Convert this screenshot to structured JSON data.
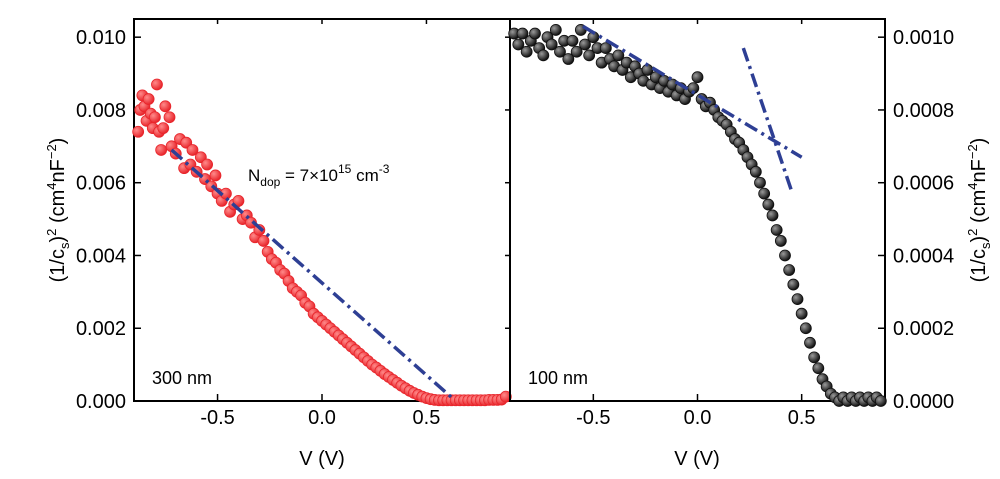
{
  "chart_data": [
    {
      "type": "scatter",
      "panel_label": "300 nm",
      "xlabel": "V (V)",
      "ylabel": "(1/c_s)^2 (cm^4 nF^-2)",
      "ylabel_parts": {
        "open": "(1/c",
        "sub": "s",
        "close": ")",
        "sup2": "2",
        "unit_open": " (cm",
        "unit_sup": "4",
        "unit_mid": "nF",
        "unit_sup2": "−2",
        "unit_close": ")"
      },
      "xlim": [
        -0.9,
        0.9
      ],
      "ylim": [
        0.0,
        0.0105
      ],
      "xticks": [
        -0.5,
        0.0,
        0.5
      ],
      "xtick_labels": [
        "-0.5",
        "0.0",
        "0.5"
      ],
      "yticks": [
        0.0,
        0.002,
        0.004,
        0.006,
        0.008,
        0.01
      ],
      "ytick_labels": [
        "0.000",
        "0.002",
        "0.004",
        "0.006",
        "0.008",
        "0.010"
      ],
      "annotation": {
        "base": "N",
        "sub": "dop",
        "eq": " = 7×10",
        "sup": "15",
        "unit": " cm",
        "unit_sup": "-3"
      },
      "marker_color": "#e8262c",
      "fit_color": "#2e3f94",
      "fit_lines": [
        {
          "x": [
            -0.72,
            0.62
          ],
          "y": [
            0.0069,
            0.0001
          ]
        }
      ],
      "series": [
        {
          "values": [
            [
              -0.88,
              0.0074
            ],
            [
              -0.87,
              0.008
            ],
            [
              -0.86,
              0.0084
            ],
            [
              -0.85,
              0.0081
            ],
            [
              -0.84,
              0.0077
            ],
            [
              -0.83,
              0.0083
            ],
            [
              -0.82,
              0.0079
            ],
            [
              -0.81,
              0.0075
            ],
            [
              -0.8,
              0.0078
            ],
            [
              -0.79,
              0.0087
            ],
            [
              -0.78,
              0.0074
            ],
            [
              -0.77,
              0.0069
            ],
            [
              -0.76,
              0.0075
            ],
            [
              -0.75,
              0.0081
            ],
            [
              -0.73,
              0.0078
            ],
            [
              -0.72,
              0.007
            ],
            [
              -0.7,
              0.0068
            ],
            [
              -0.68,
              0.0072
            ],
            [
              -0.66,
              0.0064
            ],
            [
              -0.65,
              0.0071
            ],
            [
              -0.63,
              0.0065
            ],
            [
              -0.62,
              0.0069
            ],
            [
              -0.6,
              0.0063
            ],
            [
              -0.58,
              0.0067
            ],
            [
              -0.56,
              0.0061
            ],
            [
              -0.55,
              0.0065
            ],
            [
              -0.53,
              0.0059
            ],
            [
              -0.51,
              0.0062
            ],
            [
              -0.5,
              0.0057
            ],
            [
              -0.48,
              0.0055
            ],
            [
              -0.46,
              0.0057
            ],
            [
              -0.44,
              0.0052
            ],
            [
              -0.42,
              0.0054
            ],
            [
              -0.4,
              0.0055
            ],
            [
              -0.38,
              0.005
            ],
            [
              -0.36,
              0.0051
            ],
            [
              -0.34,
              0.0049
            ],
            [
              -0.32,
              0.0045
            ],
            [
              -0.3,
              0.0047
            ],
            [
              -0.28,
              0.0044
            ],
            [
              -0.26,
              0.0041
            ],
            [
              -0.24,
              0.0039
            ],
            [
              -0.22,
              0.0038
            ],
            [
              -0.2,
              0.0036
            ],
            [
              -0.18,
              0.0035
            ],
            [
              -0.16,
              0.0033
            ],
            [
              -0.14,
              0.0031
            ],
            [
              -0.12,
              0.003
            ],
            [
              -0.1,
              0.0029
            ],
            [
              -0.08,
              0.0027
            ],
            [
              -0.06,
              0.0026
            ],
            [
              -0.04,
              0.0024
            ],
            [
              -0.02,
              0.0023
            ],
            [
              0.0,
              0.0022
            ],
            [
              0.02,
              0.0021
            ],
            [
              0.04,
              0.002
            ],
            [
              0.06,
              0.0019
            ],
            [
              0.08,
              0.0018
            ],
            [
              0.1,
              0.0017
            ],
            [
              0.12,
              0.0016
            ],
            [
              0.14,
              0.0015
            ],
            [
              0.16,
              0.0014
            ],
            [
              0.18,
              0.0013
            ],
            [
              0.2,
              0.0012
            ],
            [
              0.22,
              0.0011
            ],
            [
              0.24,
              0.001
            ],
            [
              0.26,
              0.00092
            ],
            [
              0.28,
              0.00083
            ],
            [
              0.3,
              0.00074
            ],
            [
              0.32,
              0.00066
            ],
            [
              0.34,
              0.00058
            ],
            [
              0.36,
              0.0005
            ],
            [
              0.38,
              0.00042
            ],
            [
              0.4,
              0.00035
            ],
            [
              0.42,
              0.00028
            ],
            [
              0.44,
              0.00022
            ],
            [
              0.46,
              0.00017
            ],
            [
              0.48,
              0.00012
            ],
            [
              0.5,
              8e-05
            ],
            [
              0.52,
              5e-05
            ],
            [
              0.54,
              3e-05
            ],
            [
              0.56,
              2e-05
            ],
            [
              0.58,
              2e-05
            ],
            [
              0.6,
              2e-05
            ],
            [
              0.62,
              2e-05
            ],
            [
              0.64,
              2e-05
            ],
            [
              0.66,
              2e-05
            ],
            [
              0.68,
              2e-05
            ],
            [
              0.7,
              2e-05
            ],
            [
              0.72,
              2e-05
            ],
            [
              0.74,
              2e-05
            ],
            [
              0.76,
              2e-05
            ],
            [
              0.78,
              2e-05
            ],
            [
              0.8,
              3e-05
            ],
            [
              0.82,
              3e-05
            ],
            [
              0.84,
              3e-05
            ],
            [
              0.86,
              4e-05
            ],
            [
              0.88,
              0.00012
            ]
          ]
        }
      ]
    },
    {
      "type": "scatter",
      "panel_label": "100 nm",
      "xlabel": "V (V)",
      "ylabel": "(1/c_s)^2 (cm^4 nF^-2)",
      "ylabel_parts": {
        "open": "(1/c",
        "sub": "s",
        "close": ")",
        "sup2": "2",
        "unit_open": " (cm",
        "unit_sup": "4",
        "unit_mid": "nF",
        "unit_sup2": "−2",
        "unit_close": ")"
      },
      "xlim": [
        -0.9,
        0.9
      ],
      "ylim": [
        0.0,
        0.00105
      ],
      "xticks": [
        -0.5,
        0.0,
        0.5
      ],
      "xtick_labels": [
        "-0.5",
        "0.0",
        "0.5"
      ],
      "yticks": [
        0.0,
        0.0002,
        0.0004,
        0.0006,
        0.0008,
        0.001
      ],
      "ytick_labels": [
        "0.0000",
        "0.0002",
        "0.0004",
        "0.0006",
        "0.0008",
        "0.0010"
      ],
      "marker_color": "#111111",
      "fit_color": "#2e3f94",
      "fit_lines": [
        {
          "x": [
            -0.55,
            0.5
          ],
          "y": [
            0.00103,
            0.00067
          ]
        },
        {
          "x": [
            0.22,
            0.45
          ],
          "y": [
            0.00097,
            0.00058
          ]
        }
      ],
      "series": [
        {
          "values": [
            [
              -0.88,
              0.00101
            ],
            [
              -0.86,
              0.00098
            ],
            [
              -0.84,
              0.00101
            ],
            [
              -0.82,
              0.00096
            ],
            [
              -0.8,
              0.00099
            ],
            [
              -0.78,
              0.00101
            ],
            [
              -0.76,
              0.00097
            ],
            [
              -0.74,
              0.00095
            ],
            [
              -0.72,
              0.001
            ],
            [
              -0.7,
              0.00098
            ],
            [
              -0.68,
              0.00102
            ],
            [
              -0.66,
              0.00096
            ],
            [
              -0.64,
              0.00099
            ],
            [
              -0.62,
              0.00094
            ],
            [
              -0.6,
              0.00099
            ],
            [
              -0.58,
              0.00096
            ],
            [
              -0.56,
              0.00102
            ],
            [
              -0.54,
              0.00098
            ],
            [
              -0.52,
              0.00095
            ],
            [
              -0.5,
              0.001
            ],
            [
              -0.48,
              0.00097
            ],
            [
              -0.46,
              0.00093
            ],
            [
              -0.44,
              0.00097
            ],
            [
              -0.42,
              0.00094
            ],
            [
              -0.4,
              0.00092
            ],
            [
              -0.38,
              0.00095
            ],
            [
              -0.36,
              0.00091
            ],
            [
              -0.34,
              0.00093
            ],
            [
              -0.32,
              0.00089
            ],
            [
              -0.3,
              0.00092
            ],
            [
              -0.28,
              0.0009
            ],
            [
              -0.26,
              0.00088
            ],
            [
              -0.24,
              0.00091
            ],
            [
              -0.22,
              0.00087
            ],
            [
              -0.2,
              0.00089
            ],
            [
              -0.18,
              0.00086
            ],
            [
              -0.16,
              0.00088
            ],
            [
              -0.14,
              0.00085
            ],
            [
              -0.12,
              0.00087
            ],
            [
              -0.1,
              0.00084
            ],
            [
              -0.08,
              0.00086
            ],
            [
              -0.06,
              0.00083
            ],
            [
              -0.04,
              0.00085
            ],
            [
              -0.02,
              0.00086
            ],
            [
              0.0,
              0.00089
            ],
            [
              0.02,
              0.00083
            ],
            [
              0.04,
              0.00081
            ],
            [
              0.06,
              0.00082
            ],
            [
              0.08,
              0.0008
            ],
            [
              0.1,
              0.00078
            ],
            [
              0.12,
              0.00077
            ],
            [
              0.14,
              0.00076
            ],
            [
              0.16,
              0.00074
            ],
            [
              0.18,
              0.00072
            ],
            [
              0.2,
              0.00071
            ],
            [
              0.22,
              0.00069
            ],
            [
              0.24,
              0.00067
            ],
            [
              0.26,
              0.00065
            ],
            [
              0.28,
              0.00063
            ],
            [
              0.3,
              0.0006
            ],
            [
              0.32,
              0.00057
            ],
            [
              0.34,
              0.00054
            ],
            [
              0.36,
              0.00051
            ],
            [
              0.38,
              0.00047
            ],
            [
              0.4,
              0.00044
            ],
            [
              0.42,
              0.0004
            ],
            [
              0.44,
              0.00036
            ],
            [
              0.46,
              0.00032
            ],
            [
              0.48,
              0.00028
            ],
            [
              0.5,
              0.00024
            ],
            [
              0.52,
              0.0002
            ],
            [
              0.54,
              0.00016
            ],
            [
              0.56,
              0.00012
            ],
            [
              0.58,
              9e-05
            ],
            [
              0.6,
              6e-05
            ],
            [
              0.62,
              4e-05
            ],
            [
              0.64,
              2e-05
            ],
            [
              0.66,
              1e-05
            ],
            [
              0.68,
              0.0
            ],
            [
              0.7,
              1e-05
            ],
            [
              0.72,
              0.0
            ],
            [
              0.74,
              1e-05
            ],
            [
              0.76,
              0.0
            ],
            [
              0.78,
              1e-05
            ],
            [
              0.8,
              0.0
            ],
            [
              0.82,
              1e-05
            ],
            [
              0.84,
              0.0
            ],
            [
              0.86,
              1e-05
            ],
            [
              0.88,
              0.0
            ]
          ]
        }
      ]
    }
  ]
}
